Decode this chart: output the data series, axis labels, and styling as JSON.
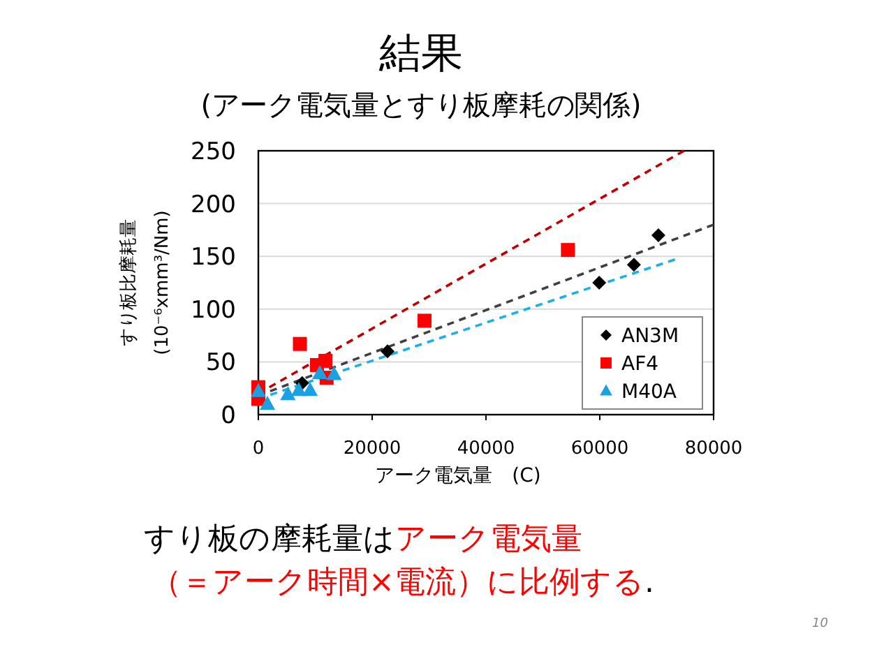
{
  "chart_data": {
    "type": "scatter",
    "title": "結果",
    "subtitle": "(アーク電気量とすり板摩耗の関係)",
    "xlabel": "アーク電気量　(C)",
    "ylabel": "すり板比摩耗量\n(10⁻⁶xmm³/Nm)",
    "xlim": [
      0,
      80000
    ],
    "ylim": [
      0,
      250
    ],
    "xticks": [
      0,
      20000,
      40000,
      60000,
      80000
    ],
    "yticks": [
      0,
      50,
      100,
      150,
      200,
      250
    ],
    "grid": "y",
    "legend": "bottom right",
    "series": [
      {
        "type": "line",
        "color": "#c00000",
        "line_style": "dashed",
        "marker": "none",
        "x": [
          0,
          74800
        ],
        "values": [
          20,
          250
        ]
      },
      {
        "type": "line",
        "color": "#404040",
        "line_style": "dashed",
        "marker": "none",
        "x": [
          0,
          80000
        ],
        "values": [
          18,
          180
        ]
      },
      {
        "type": "line",
        "color": "#1ab0e8",
        "line_style": "dashed",
        "marker": "none",
        "x": [
          0,
          73200
        ],
        "values": [
          15,
          147
        ]
      },
      {
        "name": "AN3M",
        "color": "#000000",
        "marker": "diamond",
        "x": [
          7700,
          22700,
          59900,
          66000,
          70300
        ],
        "values": [
          30,
          60,
          125,
          142,
          170
        ]
      },
      {
        "name": "AF4",
        "color": "#ff0000",
        "marker": "square",
        "x": [
          0,
          0,
          7300,
          10300,
          11800,
          12000,
          29200,
          54400
        ],
        "values": [
          26,
          15,
          67,
          47,
          51,
          35,
          89,
          156
        ]
      },
      {
        "name": "M40A",
        "color": "#1ba1e2",
        "marker": "triangle",
        "x": [
          0,
          1600,
          5200,
          7100,
          9100,
          10800,
          13300
        ],
        "values": [
          22,
          10,
          19,
          23,
          23,
          39,
          38
        ]
      }
    ],
    "annotations": [
      "すり板の摩耗量は",
      "アーク電気量",
      "（＝アーク時間×電流）に比例する",
      ".",
      "10"
    ]
  }
}
